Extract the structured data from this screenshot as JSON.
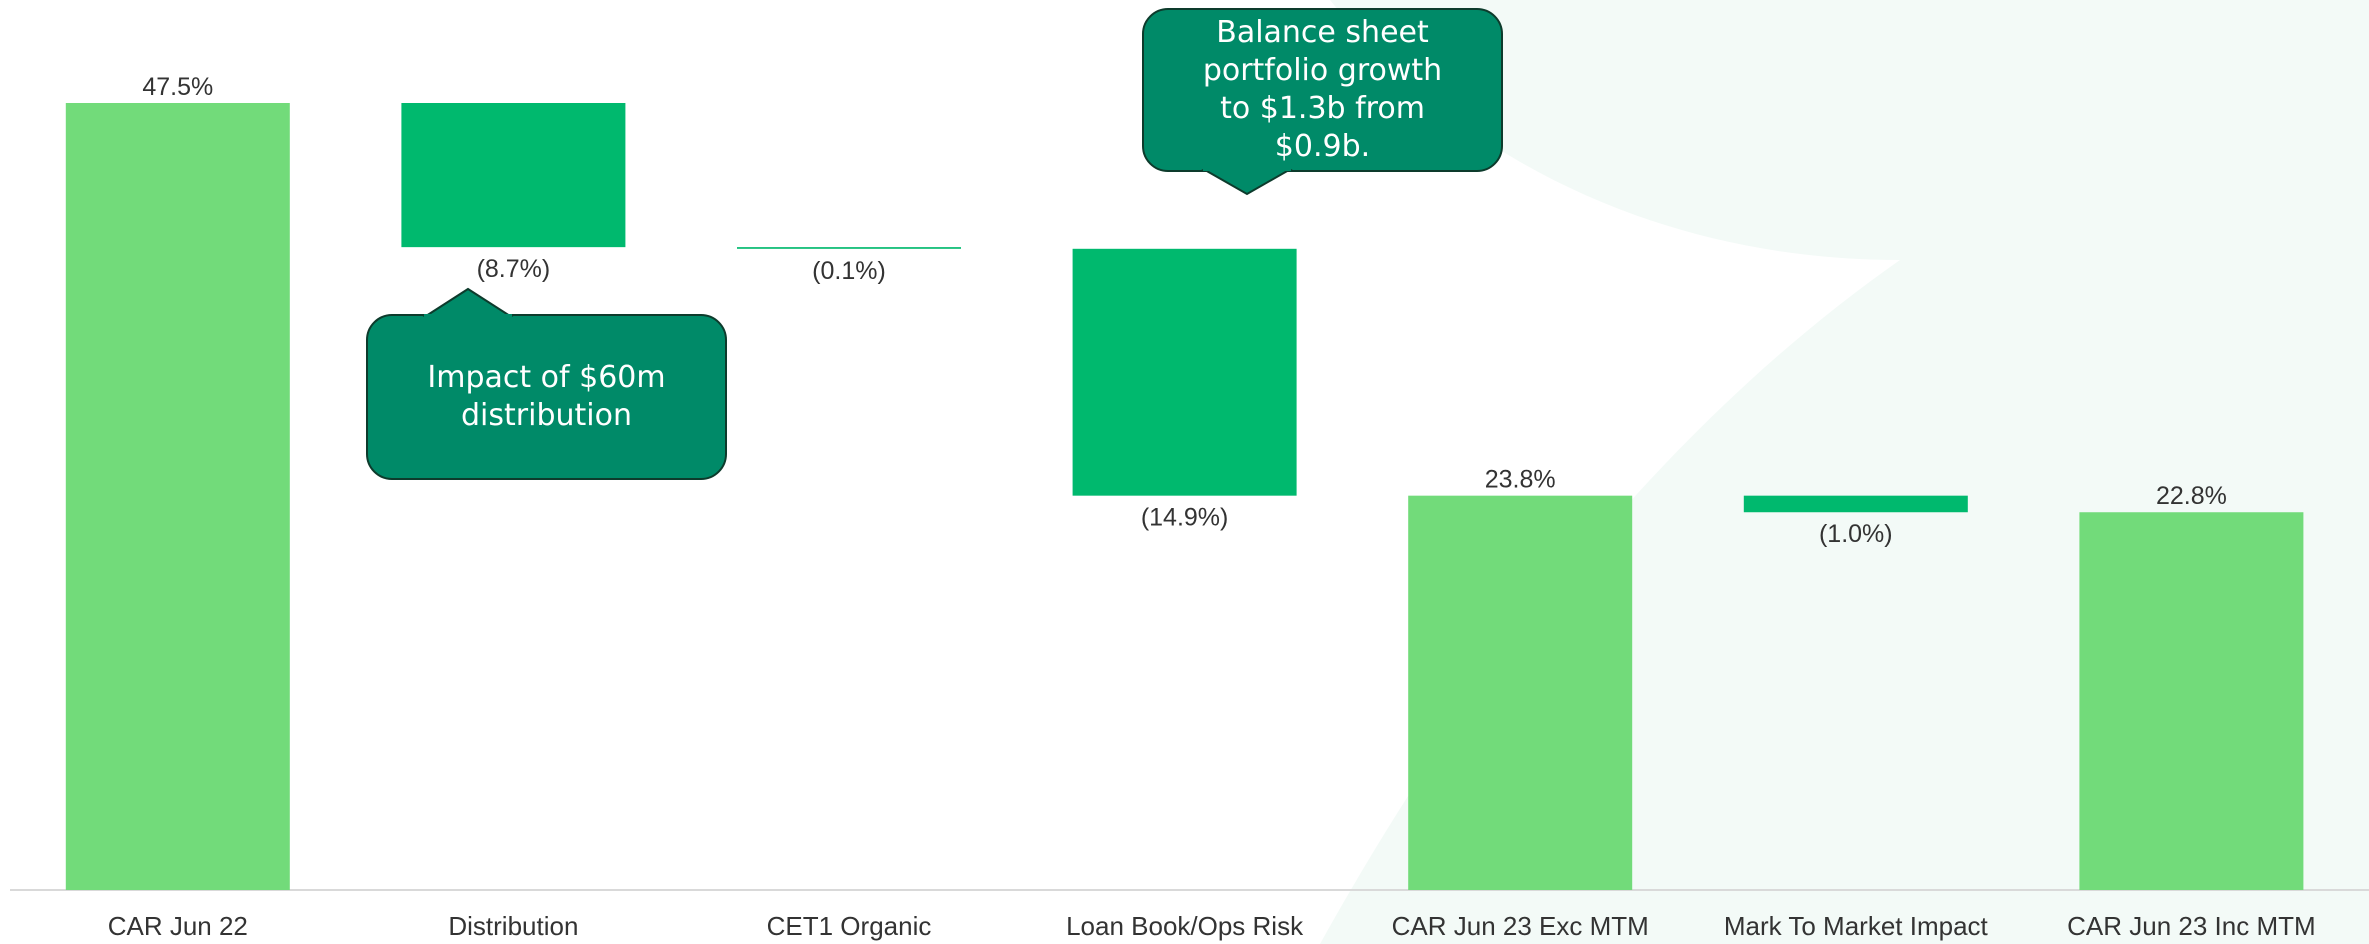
{
  "chart_data": {
    "type": "waterfall",
    "categories": [
      "CAR Jun 22",
      "Distribution",
      "CET1 Organic",
      "Loan Book/Ops Risk",
      "CAR Jun 23 Exc MTM",
      "Mark To Market Impact",
      "CAR Jun 23 Inc MTM"
    ],
    "values": [
      47.5,
      -8.7,
      -0.1,
      -14.9,
      23.8,
      -1.0,
      22.8
    ],
    "value_labels": [
      "47.5%",
      "(8.7%)",
      "(0.1%)",
      "(14.9%)",
      "23.8%",
      "(1.0%)",
      "22.8%"
    ],
    "measure": [
      "total",
      "relative",
      "relative",
      "relative",
      "total",
      "relative",
      "total"
    ],
    "total_color": "#72db7a",
    "delta_color": "#00b96e",
    "annotations": [
      "Impact of $60m distribution",
      "Balance sheet portfolio growth to $1.3b from $0.9b."
    ]
  }
}
